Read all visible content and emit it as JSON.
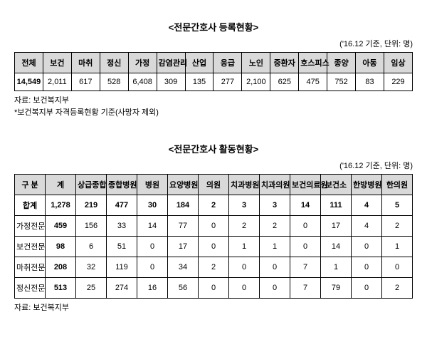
{
  "table1": {
    "title": "<전문간호사 등록현황>",
    "unit": "('16.12 기준, 단위: 명)",
    "headers": [
      "전체",
      "보건",
      "마취",
      "정신",
      "가정",
      "감염관리",
      "산업",
      "응급",
      "노인",
      "중환자",
      "호스피스",
      "종양",
      "아동",
      "임상"
    ],
    "row": [
      "14,549",
      "2,011",
      "617",
      "528",
      "6,408",
      "309",
      "135",
      "277",
      "2,100",
      "625",
      "475",
      "752",
      "83",
      "229"
    ],
    "source1": "자료: 보건복지부",
    "source2": "*보건복지부 자격등록현황 기준(사망자 제외)"
  },
  "table2": {
    "title": "<전문간호사 활동현황>",
    "unit": "('16.12 기준, 단위: 명)",
    "headers": [
      "구 분",
      "계",
      "상급종합",
      "종합병원",
      "병원",
      "요양병원",
      "의원",
      "치과병원",
      "치과의원",
      "보건의료원",
      "보건소",
      "한방병원",
      "한의원"
    ],
    "rows": [
      {
        "label": "합계",
        "vals": [
          "1,278",
          "219",
          "477",
          "30",
          "184",
          "2",
          "3",
          "3",
          "14",
          "111",
          "4",
          "5"
        ],
        "bold": true
      },
      {
        "label": "가정전문",
        "vals": [
          "459",
          "156",
          "33",
          "14",
          "77",
          "0",
          "2",
          "2",
          "0",
          "17",
          "4",
          "2"
        ],
        "bold": false
      },
      {
        "label": "보건전문",
        "vals": [
          "98",
          "6",
          "51",
          "0",
          "17",
          "0",
          "1",
          "1",
          "0",
          "14",
          "0",
          "1"
        ],
        "bold": false
      },
      {
        "label": "마취전문",
        "vals": [
          "208",
          "32",
          "119",
          "0",
          "34",
          "2",
          "0",
          "0",
          "7",
          "1",
          "0",
          "0"
        ],
        "bold": false
      },
      {
        "label": "정신전문",
        "vals": [
          "513",
          "25",
          "274",
          "16",
          "56",
          "0",
          "0",
          "0",
          "7",
          "79",
          "0",
          "2"
        ],
        "bold": false
      }
    ],
    "source": "자료: 보건복지부"
  }
}
